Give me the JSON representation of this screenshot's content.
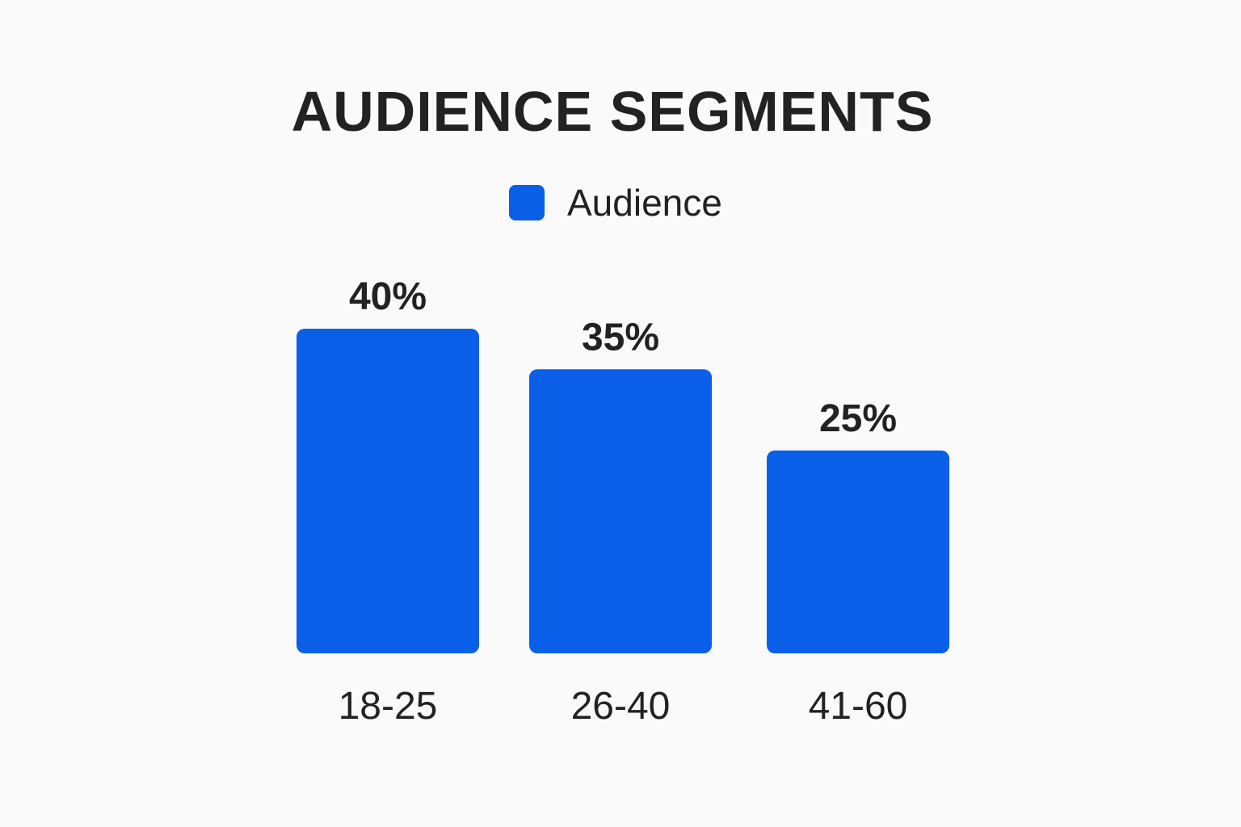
{
  "chart_data": {
    "type": "bar",
    "title": "AUDIENCE SEGMENTS",
    "categories": [
      "18-25",
      "26-40",
      "41-60"
    ],
    "series": [
      {
        "name": "Audience",
        "values": [
          40,
          35,
          25
        ]
      }
    ],
    "value_labels": [
      "40%",
      "35%",
      "25%"
    ],
    "ylim": [
      0,
      40
    ],
    "grid": false,
    "legend_position": "top-center",
    "bar_color": "#0a5fe8"
  }
}
